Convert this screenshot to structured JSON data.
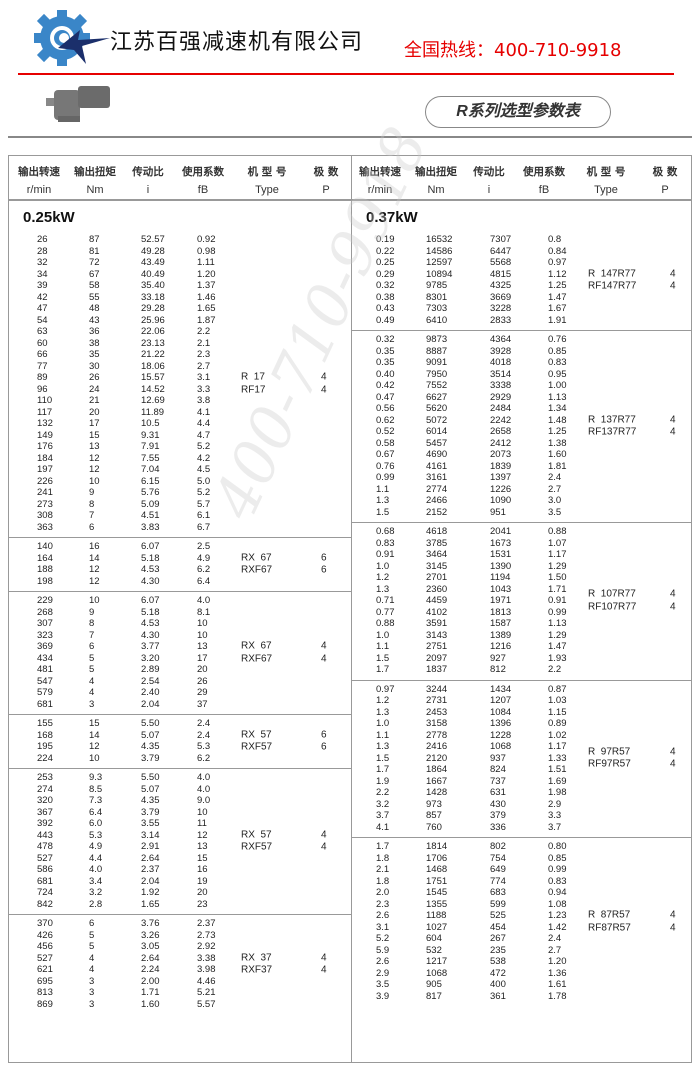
{
  "header": {
    "company": "江苏百强减速机有限公司",
    "hotline": "全国热线：400-710-9918",
    "title": "R系列选型参数表",
    "watermark": "400-710-9918"
  },
  "colors": {
    "brand_blue": "#3a86c8",
    "star_navy": "#1b2f6b",
    "hotline_red": "#e60000"
  },
  "icons": {
    "logo": "gear-star-logo",
    "product": "gear-motor-photo"
  },
  "columns": [
    {
      "cn": "输出转速",
      "en": "r/min"
    },
    {
      "cn": "输出扭矩",
      "en": "Nm"
    },
    {
      "cn": "传动比",
      "en": "i"
    },
    {
      "cn": "使用系数",
      "en": "fB"
    },
    {
      "cn": "机 型 号",
      "en": "Type"
    },
    {
      "cn": "极  数",
      "en": "P"
    }
  ],
  "left": {
    "power": "0.25kW",
    "groups": [
      {
        "types": [
          "R  17",
          "RF17"
        ],
        "poles": [
          "4",
          "4"
        ],
        "rows": [
          [
            "26",
            "87",
            "52.57",
            "0.92"
          ],
          [
            "28",
            "81",
            "49.28",
            "0.98"
          ],
          [
            "32",
            "72",
            "43.49",
            "1.11"
          ],
          [
            "34",
            "67",
            "40.49",
            "1.20"
          ],
          [
            "39",
            "58",
            "35.40",
            "1.37"
          ],
          [
            "42",
            "55",
            "33.18",
            "1.46"
          ],
          [
            "47",
            "48",
            "29.28",
            "1.65"
          ],
          [
            "54",
            "43",
            "25.96",
            "1.87"
          ],
          [
            "63",
            "36",
            "22.06",
            "2.2"
          ],
          [
            "60",
            "38",
            "23.13",
            "2.1"
          ],
          [
            "66",
            "35",
            "21.22",
            "2.3"
          ],
          [
            "77",
            "30",
            "18.06",
            "2.7"
          ],
          [
            "89",
            "26",
            "15.57",
            "3.1"
          ],
          [
            "96",
            "24",
            "14.52",
            "3.3"
          ],
          [
            "110",
            "21",
            "12.69",
            "3.8"
          ],
          [
            "117",
            "20",
            "11.89",
            "4.1"
          ],
          [
            "132",
            "17",
            "10.5",
            "4.4"
          ],
          [
            "149",
            "15",
            "9.31",
            "4.7"
          ],
          [
            "176",
            "13",
            "7.91",
            "5.2"
          ],
          [
            "184",
            "12",
            "7.55",
            "4.2"
          ],
          [
            "197",
            "12",
            "7.04",
            "4.5"
          ],
          [
            "226",
            "10",
            "6.15",
            "5.0"
          ],
          [
            "241",
            "9",
            "5.76",
            "5.2"
          ],
          [
            "273",
            "8",
            "5.09",
            "5.7"
          ],
          [
            "308",
            "7",
            "4.51",
            "6.1"
          ],
          [
            "363",
            "6",
            "3.83",
            "6.7"
          ]
        ]
      },
      {
        "types": [
          "RX  67",
          "RXF67"
        ],
        "poles": [
          "6",
          "6"
        ],
        "rows": [
          [
            "140",
            "16",
            "6.07",
            "2.5"
          ],
          [
            "164",
            "14",
            "5.18",
            "4.9"
          ],
          [
            "188",
            "12",
            "4.53",
            "6.2"
          ],
          [
            "198",
            "12",
            "4.30",
            "6.4"
          ]
        ]
      },
      {
        "types": [
          "RX  67",
          "RXF67"
        ],
        "poles": [
          "4",
          "4"
        ],
        "rows": [
          [
            "229",
            "10",
            "6.07",
            "4.0"
          ],
          [
            "268",
            "9",
            "5.18",
            "8.1"
          ],
          [
            "307",
            "8",
            "4.53",
            "10"
          ],
          [
            "323",
            "7",
            "4.30",
            "10"
          ],
          [
            "369",
            "6",
            "3.77",
            "13"
          ],
          [
            "434",
            "5",
            "3.20",
            "17"
          ],
          [
            "481",
            "5",
            "2.89",
            "20"
          ],
          [
            "547",
            "4",
            "2.54",
            "26"
          ],
          [
            "579",
            "4",
            "2.40",
            "29"
          ],
          [
            "681",
            "3",
            "2.04",
            "37"
          ]
        ]
      },
      {
        "types": [
          "RX  57",
          "RXF57"
        ],
        "poles": [
          "6",
          "6"
        ],
        "rows": [
          [
            "155",
            "15",
            "5.50",
            "2.4"
          ],
          [
            "168",
            "14",
            "5.07",
            "2.4"
          ],
          [
            "195",
            "12",
            "4.35",
            "5.3"
          ],
          [
            "224",
            "10",
            "3.79",
            "6.2"
          ]
        ]
      },
      {
        "types": [
          "RX  57",
          "RXF57"
        ],
        "poles": [
          "4",
          "4"
        ],
        "rows": [
          [
            "253",
            "9.3",
            "5.50",
            "4.0"
          ],
          [
            "274",
            "8.5",
            "5.07",
            "4.0"
          ],
          [
            "320",
            "7.3",
            "4.35",
            "9.0"
          ],
          [
            "367",
            "6.4",
            "3.79",
            "10"
          ],
          [
            "392",
            "6.0",
            "3.55",
            "11"
          ],
          [
            "443",
            "5.3",
            "3.14",
            "12"
          ],
          [
            "478",
            "4.9",
            "2.91",
            "13"
          ],
          [
            "527",
            "4.4",
            "2.64",
            "15"
          ],
          [
            "586",
            "4.0",
            "2.37",
            "16"
          ],
          [
            "681",
            "3.4",
            "2.04",
            "19"
          ],
          [
            "724",
            "3.2",
            "1.92",
            "20"
          ],
          [
            "842",
            "2.8",
            "1.65",
            "23"
          ]
        ]
      },
      {
        "types": [
          "RX  37",
          "RXF37"
        ],
        "poles": [
          "4",
          "4"
        ],
        "rows": [
          [
            "370",
            "6",
            "3.76",
            "2.37"
          ],
          [
            "426",
            "5",
            "3.26",
            "2.73"
          ],
          [
            "456",
            "5",
            "3.05",
            "2.92"
          ],
          [
            "527",
            "4",
            "2.64",
            "3.38"
          ],
          [
            "621",
            "4",
            "2.24",
            "3.98"
          ],
          [
            "695",
            "3",
            "2.00",
            "4.46"
          ],
          [
            "813",
            "3",
            "1.71",
            "5.21"
          ],
          [
            "869",
            "3",
            "1.60",
            "5.57"
          ]
        ]
      }
    ]
  },
  "right": {
    "power": "0.37kW",
    "groups": [
      {
        "types": [
          "R  147R77",
          "RF147R77"
        ],
        "poles": [
          "4",
          "4"
        ],
        "rows": [
          [
            "0.19",
            "16532",
            "7307",
            "0.8"
          ],
          [
            "0.22",
            "14586",
            "6447",
            "0.84"
          ],
          [
            "0.25",
            "12597",
            "5568",
            "0.97"
          ],
          [
            "0.29",
            "10894",
            "4815",
            "1.12"
          ],
          [
            "0.32",
            "9785",
            "4325",
            "1.25"
          ],
          [
            "0.38",
            "8301",
            "3669",
            "1.47"
          ],
          [
            "0.43",
            "7303",
            "3228",
            "1.67"
          ],
          [
            "0.49",
            "6410",
            "2833",
            "1.91"
          ]
        ]
      },
      {
        "types": [
          "R  137R77",
          "RF137R77"
        ],
        "poles": [
          "4",
          "4"
        ],
        "rows": [
          [
            "0.32",
            "9873",
            "4364",
            "0.76"
          ],
          [
            "0.35",
            "8887",
            "3928",
            "0.85"
          ],
          [
            "0.35",
            "9091",
            "4018",
            "0.83"
          ],
          [
            "0.40",
            "7950",
            "3514",
            "0.95"
          ],
          [
            "0.42",
            "7552",
            "3338",
            "1.00"
          ],
          [
            "0.47",
            "6627",
            "2929",
            "1.13"
          ],
          [
            "0.56",
            "5620",
            "2484",
            "1.34"
          ],
          [
            "0.62",
            "5072",
            "2242",
            "1.48"
          ],
          [
            "0.52",
            "6014",
            "2658",
            "1.25"
          ],
          [
            "0.58",
            "5457",
            "2412",
            "1.38"
          ],
          [
            "0.67",
            "4690",
            "2073",
            "1.60"
          ],
          [
            "0.76",
            "4161",
            "1839",
            "1.81"
          ],
          [
            "0.99",
            "3161",
            "1397",
            "2.4"
          ],
          [
            "1.1",
            "2774",
            "1226",
            "2.7"
          ],
          [
            "1.3",
            "2466",
            "1090",
            "3.0"
          ],
          [
            "1.5",
            "2152",
            "951",
            "3.5"
          ]
        ]
      },
      {
        "types": [
          "R  107R77",
          "RF107R77"
        ],
        "poles": [
          "4",
          "4"
        ],
        "rows": [
          [
            "0.68",
            "4618",
            "2041",
            "0.88"
          ],
          [
            "0.83",
            "3785",
            "1673",
            "1.07"
          ],
          [
            "0.91",
            "3464",
            "1531",
            "1.17"
          ],
          [
            "1.0",
            "3145",
            "1390",
            "1.29"
          ],
          [
            "1.2",
            "2701",
            "1194",
            "1.50"
          ],
          [
            "1.3",
            "2360",
            "1043",
            "1.71"
          ],
          [
            "0.71",
            "4459",
            "1971",
            "0.91"
          ],
          [
            "0.77",
            "4102",
            "1813",
            "0.99"
          ],
          [
            "0.88",
            "3591",
            "1587",
            "1.13"
          ],
          [
            "1.0",
            "3143",
            "1389",
            "1.29"
          ],
          [
            "1.1",
            "2751",
            "1216",
            "1.47"
          ],
          [
            "1.5",
            "2097",
            "927",
            "1.93"
          ],
          [
            "1.7",
            "1837",
            "812",
            "2.2"
          ]
        ]
      },
      {
        "types": [
          "R  97R57",
          "RF97R57"
        ],
        "poles": [
          "4",
          "4"
        ],
        "rows": [
          [
            "0.97",
            "3244",
            "1434",
            "0.87"
          ],
          [
            "1.2",
            "2731",
            "1207",
            "1.03"
          ],
          [
            "1.3",
            "2453",
            "1084",
            "1.15"
          ],
          [
            "1.0",
            "3158",
            "1396",
            "0.89"
          ],
          [
            "1.1",
            "2778",
            "1228",
            "1.02"
          ],
          [
            "1.3",
            "2416",
            "1068",
            "1.17"
          ],
          [
            "1.5",
            "2120",
            "937",
            "1.33"
          ],
          [
            "1.7",
            "1864",
            "824",
            "1.51"
          ],
          [
            "1.9",
            "1667",
            "737",
            "1.69"
          ],
          [
            "2.2",
            "1428",
            "631",
            "1.98"
          ],
          [
            "3.2",
            "973",
            "430",
            "2.9"
          ],
          [
            "3.7",
            "857",
            "379",
            "3.3"
          ],
          [
            "4.1",
            "760",
            "336",
            "3.7"
          ]
        ]
      },
      {
        "types": [
          "R  87R57",
          "RF87R57"
        ],
        "poles": [
          "4",
          "4"
        ],
        "rows": [
          [
            "1.7",
            "1814",
            "802",
            "0.80"
          ],
          [
            "1.8",
            "1706",
            "754",
            "0.85"
          ],
          [
            "2.1",
            "1468",
            "649",
            "0.99"
          ],
          [
            "1.8",
            "1751",
            "774",
            "0.83"
          ],
          [
            "2.0",
            "1545",
            "683",
            "0.94"
          ],
          [
            "2.3",
            "1355",
            "599",
            "1.08"
          ],
          [
            "2.6",
            "1188",
            "525",
            "1.23"
          ],
          [
            "3.1",
            "1027",
            "454",
            "1.42"
          ],
          [
            "5.2",
            "604",
            "267",
            "2.4"
          ],
          [
            "5.9",
            "532",
            "235",
            "2.7"
          ],
          [
            "2.6",
            "1217",
            "538",
            "1.20"
          ],
          [
            "2.9",
            "1068",
            "472",
            "1.36"
          ],
          [
            "3.5",
            "905",
            "400",
            "1.61"
          ],
          [
            "3.9",
            "817",
            "361",
            "1.78"
          ]
        ]
      }
    ]
  }
}
